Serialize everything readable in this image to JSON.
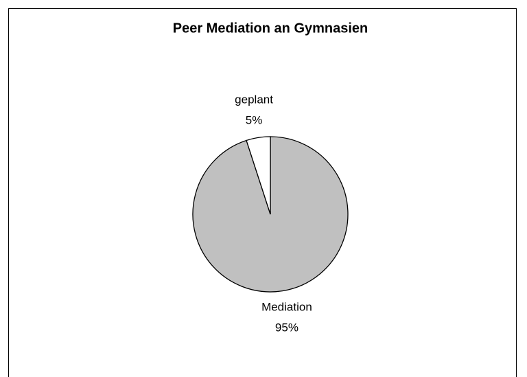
{
  "chart_data": {
    "type": "pie",
    "title": "Peer Mediation an Gymnasien",
    "categories": [
      "Mediation",
      "geplant"
    ],
    "values": [
      95,
      5
    ],
    "value_labels": [
      "95%",
      "5%"
    ],
    "colors": [
      "#c0c0c0",
      "#ffffff"
    ]
  }
}
